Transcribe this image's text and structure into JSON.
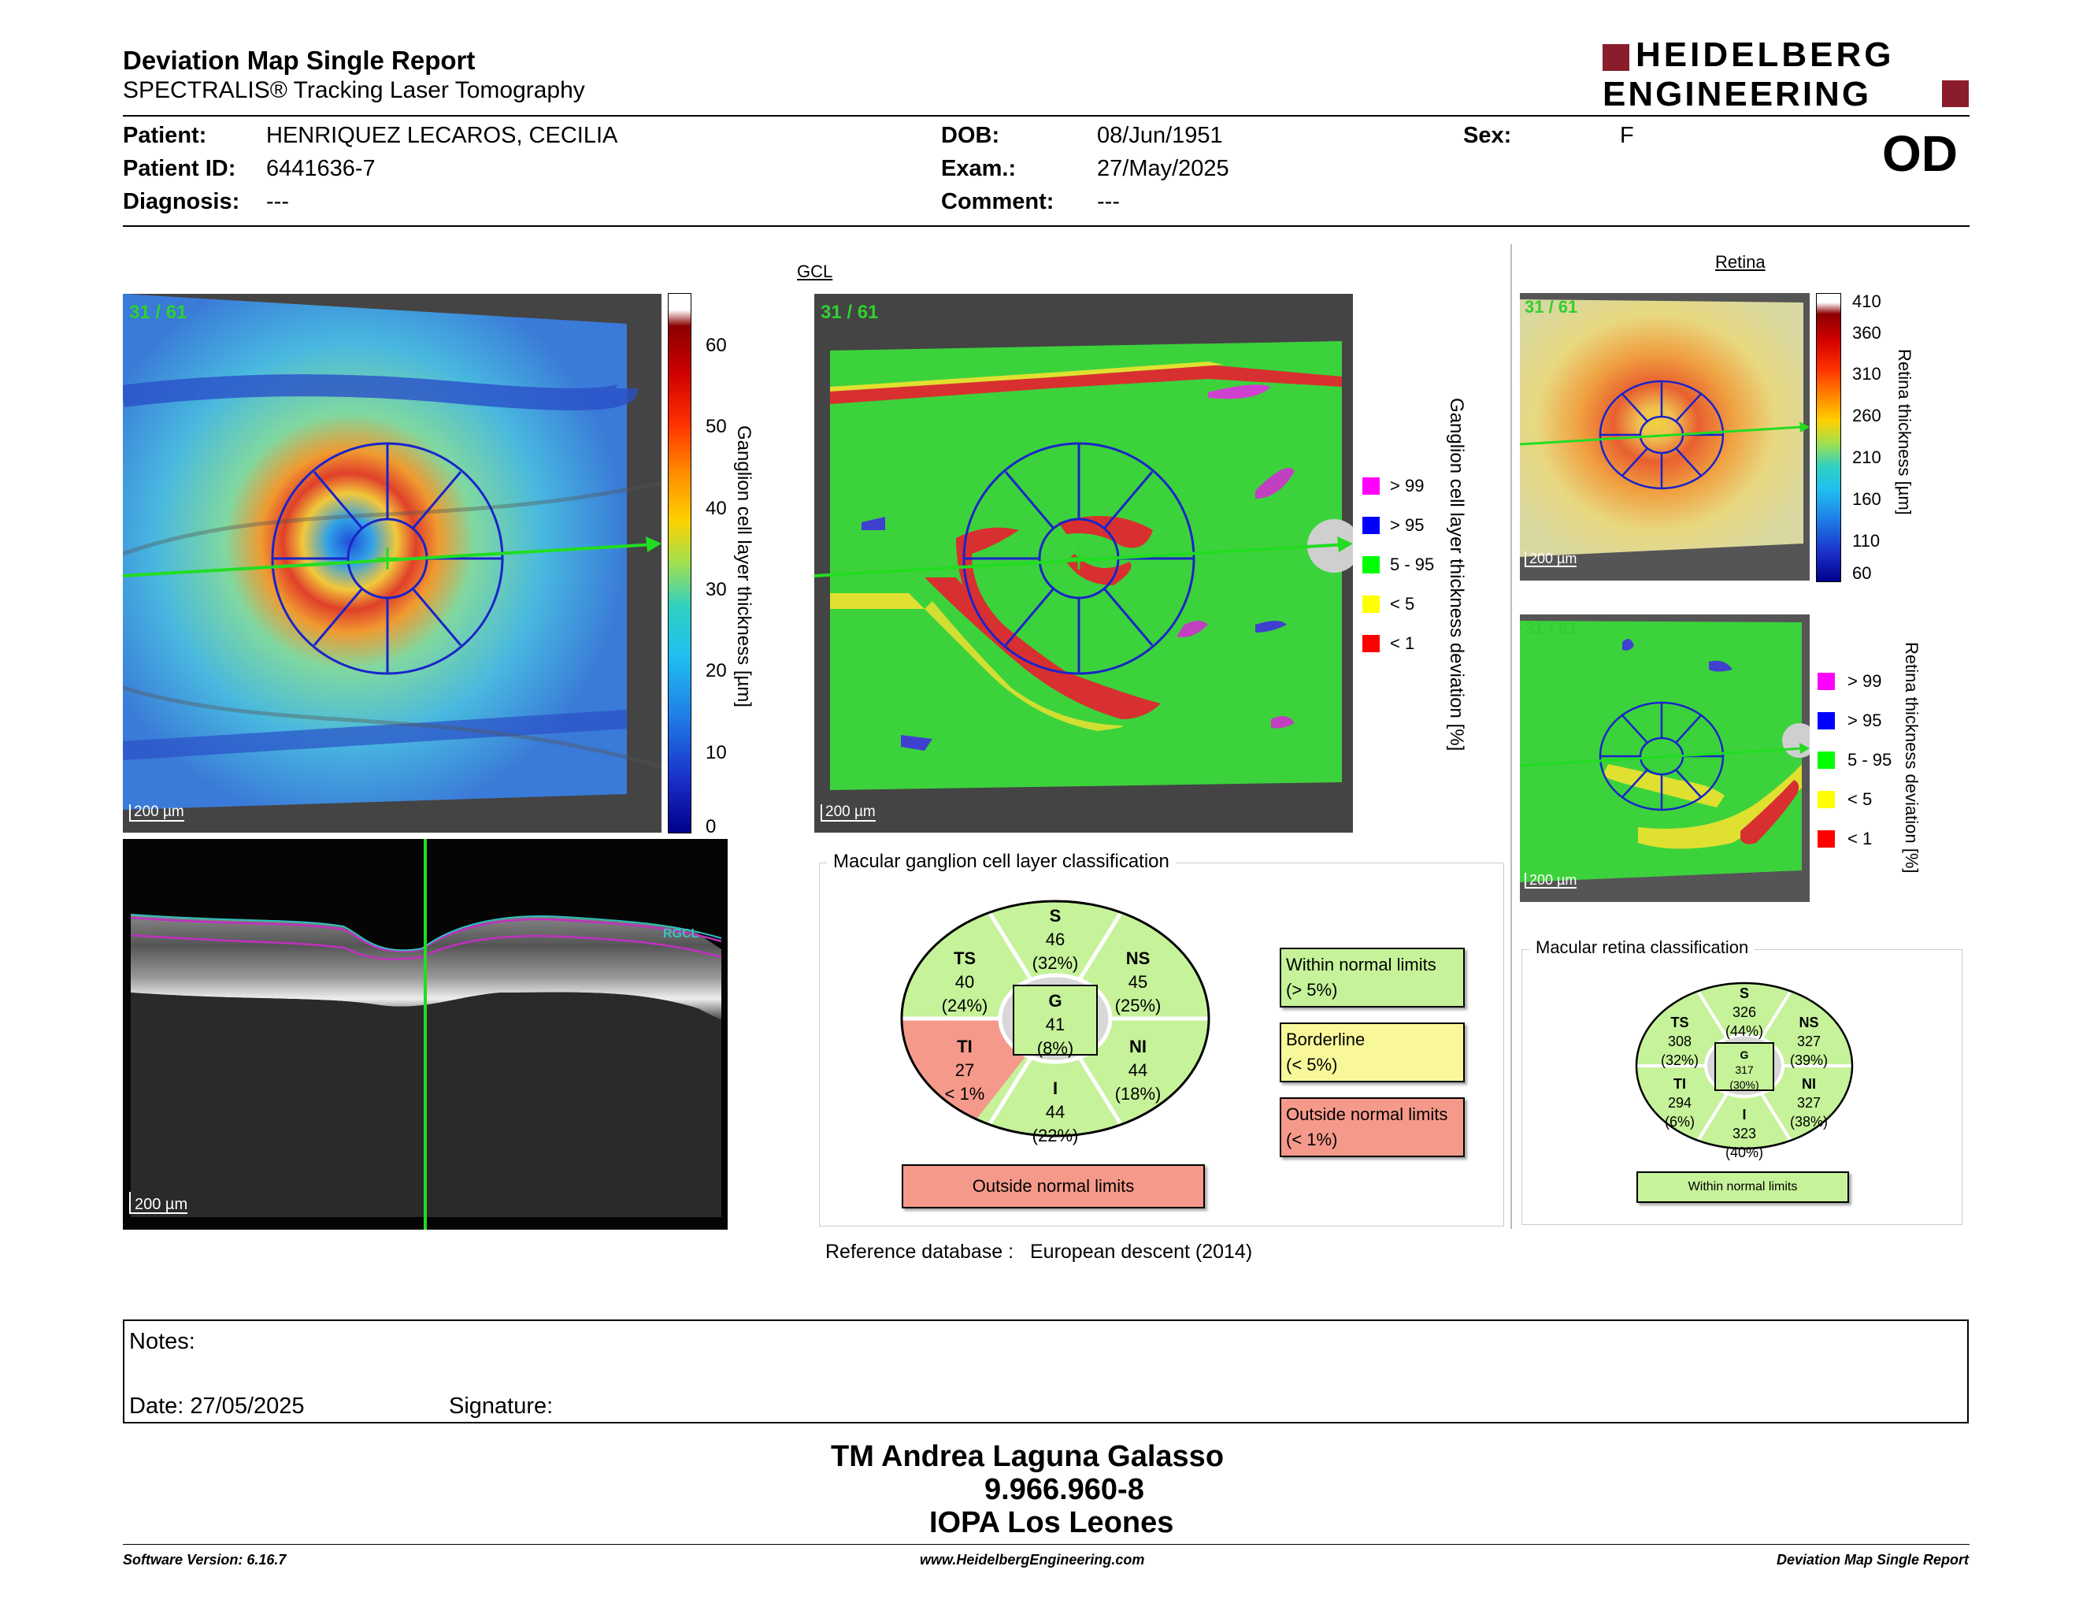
{
  "header": {
    "title": "Deviation Map Single Report",
    "subtitle": "SPECTRALIS® Tracking Laser Tomography",
    "brand_line1": "HEIDELBERG",
    "brand_line2": "ENGINEERING",
    "eye": "OD"
  },
  "patient": {
    "name_label": "Patient:",
    "name": "HENRIQUEZ LECAROS, CECILIA",
    "id_label": "Patient ID:",
    "id": "6441636-7",
    "diagnosis_label": "Diagnosis:",
    "diagnosis": "---",
    "dob_label": "DOB:",
    "dob": "08/Jun/1951",
    "exam_label": "Exam.:",
    "exam": "27/May/2025",
    "comment_label": "Comment:",
    "comment": "---",
    "sex_label": "Sex:",
    "sex": "F"
  },
  "images": {
    "frame_count": "31 / 61",
    "scale": "200 µm",
    "gcl_heading": "GCL",
    "retina_heading": "Retina",
    "oct_layer_tag": "RGCL"
  },
  "gcl_thickness_scale": {
    "label": "Ganglion cell layer thickness [µm]",
    "ticks": [
      "60",
      "50",
      "40",
      "30",
      "20",
      "10",
      "0"
    ]
  },
  "gcl_deviation_legend": {
    "label": "Ganglion cell layer thickness deviation [%]",
    "items": [
      {
        "text": "> 99",
        "color": "#ff00ff"
      },
      {
        "text": "> 95",
        "color": "#0000ff"
      },
      {
        "text": "5 - 95",
        "color": "#00ff00"
      },
      {
        "text": "< 5",
        "color": "#ffff00"
      },
      {
        "text": "< 1",
        "color": "#ff0000"
      }
    ]
  },
  "retina_thickness_scale": {
    "label": "Retina thickness [µm]",
    "ticks": [
      "410",
      "360",
      "310",
      "260",
      "210",
      "160",
      "110",
      "60"
    ]
  },
  "retina_deviation_legend": {
    "label": "Retina thickness deviation [%]",
    "items": [
      {
        "text": "> 99",
        "color": "#ff00ff"
      },
      {
        "text": "> 95",
        "color": "#0000ff"
      },
      {
        "text": "5 - 95",
        "color": "#00ff00"
      },
      {
        "text": "< 5",
        "color": "#ffff00"
      },
      {
        "text": "< 1",
        "color": "#ff0000"
      }
    ]
  },
  "gcl_classification": {
    "title": "Macular ganglion cell layer classification",
    "sectors": {
      "S": {
        "name": "S",
        "value": "46",
        "pct": "(32%)",
        "color": "#c6f29a"
      },
      "NS": {
        "name": "NS",
        "value": "45",
        "pct": "(25%)",
        "color": "#c6f29a"
      },
      "NI": {
        "name": "NI",
        "value": "44",
        "pct": "(18%)",
        "color": "#c6f29a"
      },
      "I": {
        "name": "I",
        "value": "44",
        "pct": "(22%)",
        "color": "#c6f29a"
      },
      "TI": {
        "name": "TI",
        "value": "27",
        "pct": "< 1%",
        "color": "#f59a8b"
      },
      "TS": {
        "name": "TS",
        "value": "40",
        "pct": "(24%)",
        "color": "#c6f29a"
      },
      "G": {
        "name": "G",
        "value": "41",
        "pct": "(8%)",
        "color": "#c6f29a"
      }
    },
    "result": "Outside normal limits",
    "result_color": "#f59a8b",
    "legend": [
      {
        "line1": "Within normal limits",
        "line2": "(> 5%)",
        "color": "#c6f29a"
      },
      {
        "line1": "Borderline",
        "line2": "(< 5%)",
        "color": "#f8f89a"
      },
      {
        "line1": "Outside normal limits",
        "line2": "(< 1%)",
        "color": "#f59a8b"
      }
    ]
  },
  "retina_classification": {
    "title": "Macular retina classification",
    "sectors": {
      "S": {
        "name": "S",
        "value": "326",
        "pct": "(44%)"
      },
      "NS": {
        "name": "NS",
        "value": "327",
        "pct": "(39%)"
      },
      "NI": {
        "name": "NI",
        "value": "327",
        "pct": "(38%)"
      },
      "I": {
        "name": "I",
        "value": "323",
        "pct": "(40%)"
      },
      "TI": {
        "name": "TI",
        "value": "294",
        "pct": "(6%)"
      },
      "TS": {
        "name": "TS",
        "value": "308",
        "pct": "(32%)"
      },
      "G": {
        "name": "G",
        "value": "317",
        "pct": "(30%)"
      }
    },
    "result": "Within normal limits",
    "color": "#c6f29a"
  },
  "reference": {
    "label": "Reference database :",
    "value": "European descent (2014)"
  },
  "notes": {
    "notes_label": "Notes:",
    "date_label": "Date: 27/05/2025",
    "signature_label": "Signature:"
  },
  "signature": {
    "name": "TM Andrea Laguna Galasso",
    "rut": "9.966.960-8",
    "institution": "IOPA Los Leones"
  },
  "footer": {
    "software": "Software Version: 6.16.7",
    "website": "www.HeidelbergEngineering.com",
    "report": "Deviation Map Single Report"
  }
}
